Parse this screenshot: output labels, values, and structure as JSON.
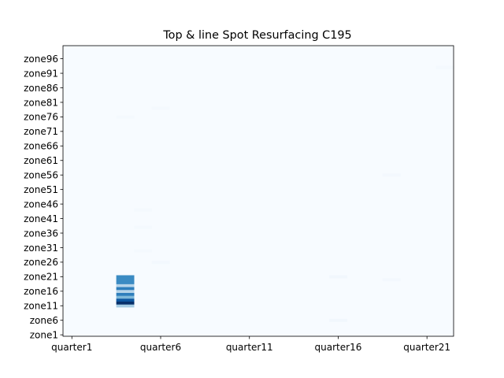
{
  "chart_data": {
    "type": "heatmap",
    "title": "Top & line Spot Resurfacing C195",
    "xlabel": "",
    "ylabel": "",
    "x_tick_labels": [
      "quarter1",
      "quarter6",
      "quarter11",
      "quarter16",
      "quarter21"
    ],
    "y_tick_labels": [
      "zone1",
      "zone6",
      "zone11",
      "zone16",
      "zone21",
      "zone26",
      "zone31",
      "zone36",
      "zone41",
      "zone46",
      "zone51",
      "zone56",
      "zone61",
      "zone66",
      "zone71",
      "zone76",
      "zone81",
      "zone86",
      "zone91",
      "zone96"
    ],
    "x_count": 22,
    "y_count": 100,
    "colormap": "Blues",
    "color_low": "#f7fbff",
    "color_high": "#08306b",
    "cells": [
      {
        "quarter": "quarter4",
        "zone": "zone11",
        "value": 0.35
      },
      {
        "quarter": "quarter4",
        "zone": "zone12",
        "value": 1.0
      },
      {
        "quarter": "quarter4",
        "zone": "zone13",
        "value": 0.85
      },
      {
        "quarter": "quarter4",
        "zone": "zone14",
        "value": 0.45
      },
      {
        "quarter": "quarter4",
        "zone": "zone15",
        "value": 0.7
      },
      {
        "quarter": "quarter4",
        "zone": "zone16",
        "value": 0.3
      },
      {
        "quarter": "quarter4",
        "zone": "zone17",
        "value": 0.7
      },
      {
        "quarter": "quarter4",
        "zone": "zone18",
        "value": 0.3
      },
      {
        "quarter": "quarter4",
        "zone": "zone19",
        "value": 0.65
      },
      {
        "quarter": "quarter4",
        "zone": "zone20",
        "value": 0.65
      },
      {
        "quarter": "quarter4",
        "zone": "zone21",
        "value": 0.65
      },
      {
        "quarter": "quarter16",
        "zone": "zone6",
        "value": 0.03
      },
      {
        "quarter": "quarter16",
        "zone": "zone21",
        "value": 0.03
      },
      {
        "quarter": "quarter19",
        "zone": "zone20",
        "value": 0.02
      },
      {
        "quarter": "quarter6",
        "zone": "zone26",
        "value": 0.02
      },
      {
        "quarter": "quarter19",
        "zone": "zone56",
        "value": 0.02
      },
      {
        "quarter": "quarter5",
        "zone": "zone30",
        "value": 0.015
      },
      {
        "quarter": "quarter5",
        "zone": "zone38",
        "value": 0.015
      },
      {
        "quarter": "quarter5",
        "zone": "zone44",
        "value": 0.015
      },
      {
        "quarter": "quarter22",
        "zone": "zone93",
        "value": 0.015
      },
      {
        "quarter": "quarter4",
        "zone": "zone76",
        "value": 0.015
      },
      {
        "quarter": "quarter6",
        "zone": "zone79",
        "value": 0.015
      }
    ]
  }
}
